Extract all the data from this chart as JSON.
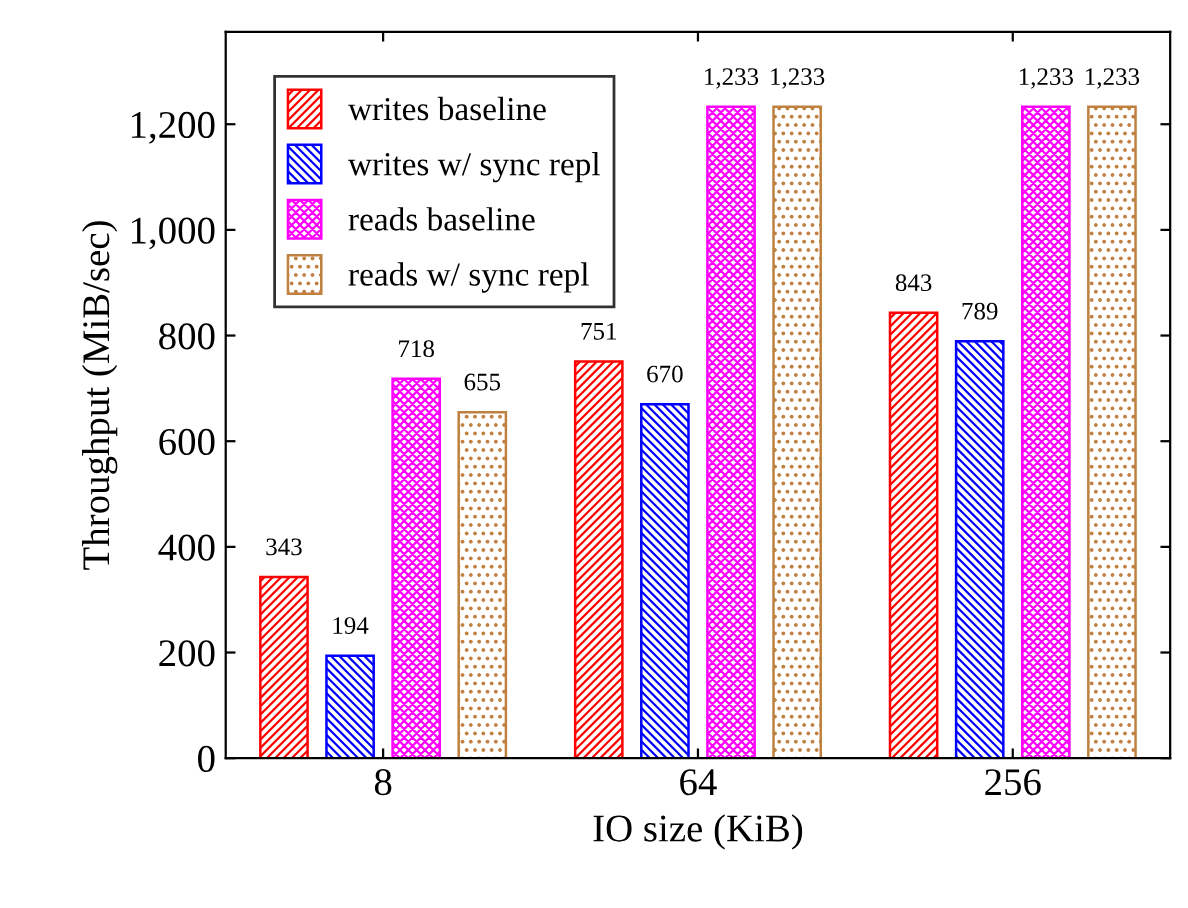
{
  "chart_data": {
    "type": "bar",
    "xlabel": "IO size (KiB)",
    "ylabel": "Throughput (MiB/sec)",
    "categories": [
      "8",
      "64",
      "256"
    ],
    "series": [
      {
        "name": "writes baseline",
        "color": "#ff0000",
        "values": [
          343,
          751,
          843
        ],
        "value_labels": [
          "343",
          "751",
          "843"
        ]
      },
      {
        "name": "writes w/ sync repl",
        "color": "#0000ff",
        "values": [
          194,
          670,
          789
        ],
        "value_labels": [
          "194",
          "670",
          "789"
        ]
      },
      {
        "name": "reads baseline",
        "color": "#ff00ff",
        "values": [
          718,
          1233,
          1233
        ],
        "value_labels": [
          "718",
          "1,233",
          "1,233"
        ]
      },
      {
        "name": "reads w/ sync repl",
        "color": "#bf8040",
        "values": [
          655,
          1233,
          1233
        ],
        "value_labels": [
          "655",
          "1,233",
          "1,233"
        ]
      }
    ],
    "ylim": [
      0,
      1375
    ],
    "yticks": [
      0,
      200,
      400,
      600,
      800,
      {
        "value": 1000,
        "label": "1,000"
      },
      {
        "value": 1200,
        "label": "1,200"
      }
    ],
    "legend": "top left",
    "grid": false
  }
}
